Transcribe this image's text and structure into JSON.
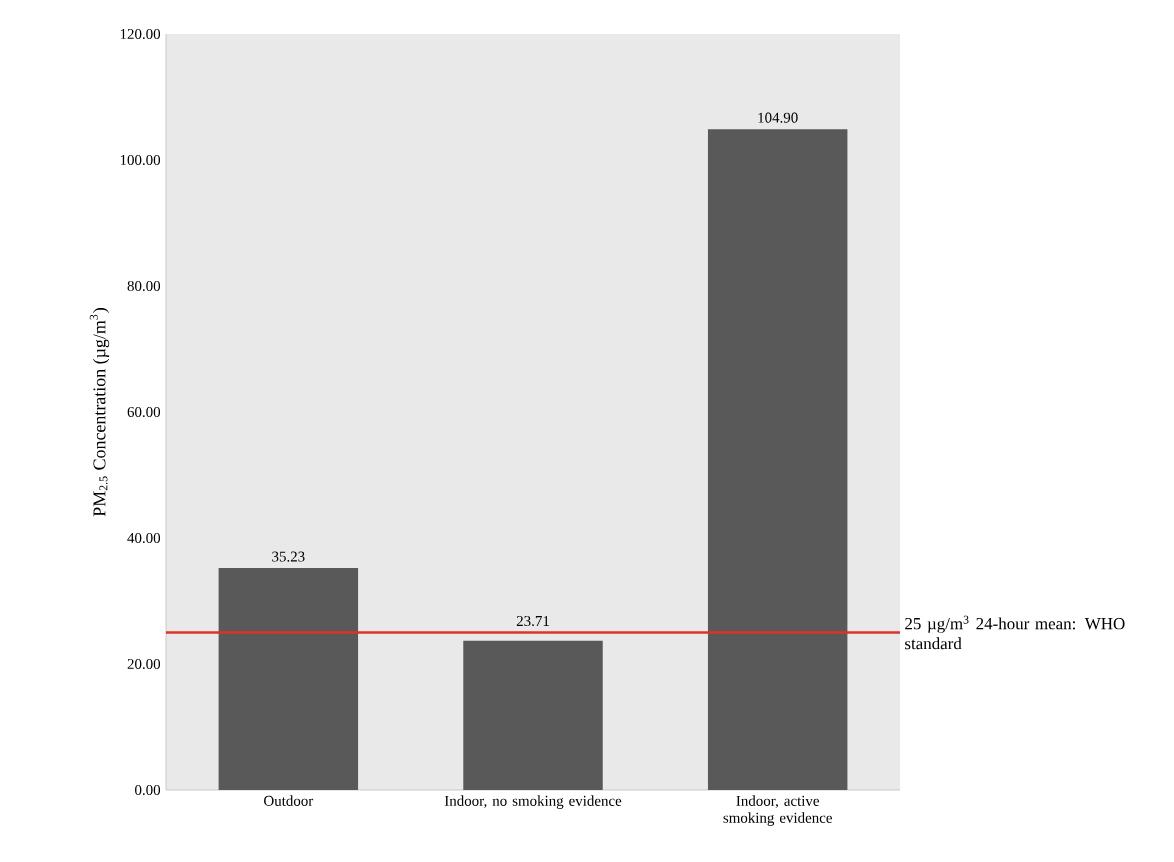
{
  "chart_data": {
    "type": "bar",
    "ylabel": "PM$_{2.5}$ Concentration (µg/m$^{3}$)",
    "categories": [
      "Outdoor",
      "Indoor, no smoking evidence",
      "Indoor, active smoking evidence"
    ],
    "values": [
      35.23,
      23.71,
      104.9
    ],
    "value_labels": [
      "35.23",
      "23.71",
      "104.90"
    ],
    "color": "#595959",
    "ylim": [
      0,
      120
    ],
    "yticks": [
      {
        "value": 0,
        "label": "0.00"
      },
      {
        "value": 20,
        "label": "20.00"
      },
      {
        "value": 40,
        "label": "40.00"
      },
      {
        "value": 60,
        "label": "60.00"
      },
      {
        "value": 80,
        "label": "80.00"
      },
      {
        "value": 100,
        "label": "100.00"
      },
      {
        "value": 120,
        "label": "120.00"
      }
    ],
    "ref_lines": [
      {
        "axis": "y",
        "value": 25,
        "label": "25 µg/m$^{3}$ 24-hour mean: WHO standard",
        "color": "#e0302a"
      }
    ]
  }
}
